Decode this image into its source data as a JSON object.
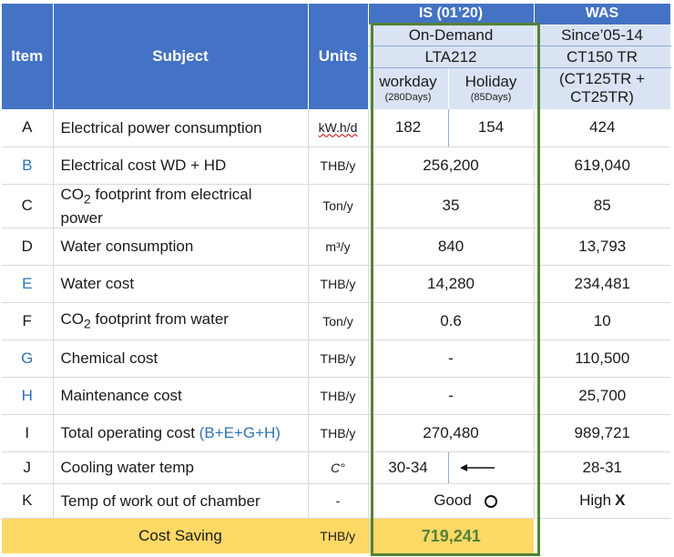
{
  "header": {
    "item": "Item",
    "subject": "Subject",
    "units": "Units",
    "is_title": "IS (01’20)",
    "is_mode": "On-Demand",
    "is_model": "LTA212",
    "workday": "workday",
    "workday_days": "(280Days)",
    "holiday": "Holiday",
    "holiday_days": "(85Days)",
    "was_title": "WAS",
    "was_since": "Since’05-14",
    "was_model": "CT150 TR",
    "was_model2_line1": "(CT125TR +",
    "was_model2_line2": "CT25TR)"
  },
  "rows": [
    {
      "item": "A",
      "subject": "Electrical power consumption",
      "unit": "kW.h/d",
      "is_wd": "182",
      "is_hd": "154",
      "was": "424"
    },
    {
      "item": "B",
      "subject": "Electrical cost WD + HD",
      "unit": "THB/y",
      "is": "256,200",
      "was": "619,040"
    },
    {
      "item": "C",
      "subject_pre": "CO",
      "subject_sub": "2",
      "subject_post": " footprint from electrical",
      "subject_line2": "power",
      "unit": "Ton/y",
      "is": "35",
      "was": "85"
    },
    {
      "item": "D",
      "subject": "Water consumption",
      "unit": "m³/y",
      "is": "840",
      "was": "13,793"
    },
    {
      "item": "E",
      "subject": "Water cost",
      "unit": "THB/y",
      "is": "14,280",
      "was": "234,481"
    },
    {
      "item": "F",
      "subject_pre": "CO",
      "subject_sub": "2",
      "subject_post": " footprint from water",
      "unit": "Ton/y",
      "is": "0.6",
      "was": "10"
    },
    {
      "item": "G",
      "subject": "Chemical cost",
      "unit": "THB/y",
      "is": "-",
      "was": "110,500"
    },
    {
      "item": "H",
      "subject": "Maintenance cost",
      "unit": "THB/y",
      "is": "-",
      "was": "25,700"
    },
    {
      "item": "I",
      "subject": "Total operating cost ",
      "subject_formula": "(B+E+G+H)",
      "unit": "THB/y",
      "is": "270,480",
      "was": "989,721"
    },
    {
      "item": "J",
      "subject": "Cooling water temp",
      "unit": "C°",
      "is": "30-34",
      "was": "28-31"
    },
    {
      "item": "K",
      "subject": "Temp of work out of chamber",
      "unit": "-",
      "is": "Good",
      "was": "High",
      "was_mark": "X"
    }
  ],
  "footer": {
    "label": "Cost Saving",
    "unit": "THB/y",
    "value": "719,241"
  },
  "colors": {
    "header_blue": "#4472c4",
    "sub_blue": "#dae3f3",
    "link_blue": "#2e74b5",
    "outline_green": "#548235",
    "saving_bg": "#ffd966"
  },
  "icons": {
    "good_mark": "circle-icon",
    "cooling_arrow": "arrow-left-icon"
  }
}
